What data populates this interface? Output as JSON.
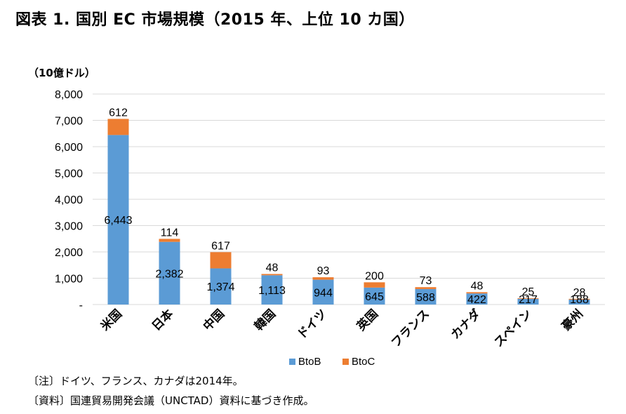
{
  "title": "図表 1.  国別 EC 市場規模（2015 年、上位 10 カ国）",
  "unit_label": "（10億ドル）",
  "notes": {
    "note1": "〔注〕ドイツ、フランス、カナダは2014年。",
    "note2": "〔資料〕国連貿易開発会議（UNCTAD）資料に基づき作成。"
  },
  "chart_data": {
    "type": "bar",
    "stacked": true,
    "categories": [
      "米国",
      "日本",
      "中国",
      "韓国",
      "ドイツ",
      "英国",
      "フランス",
      "カナダ",
      "スペイン",
      "豪州"
    ],
    "series": [
      {
        "name": "BtoB",
        "color": "#5b9bd5",
        "values": [
          6443,
          2382,
          1374,
          1113,
          944,
          645,
          588,
          422,
          217,
          188
        ]
      },
      {
        "name": "BtoC",
        "color": "#ed7d31",
        "values": [
          612,
          114,
          617,
          48,
          93,
          200,
          73,
          48,
          25,
          28
        ]
      }
    ],
    "y_ticks": [
      "8,000",
      "7,000",
      "6,000",
      "5,000",
      "4,000",
      "3,000",
      "2,000",
      "1,000",
      "-"
    ],
    "ylim": [
      0,
      8000
    ],
    "grid": true,
    "legend_position": "bottom"
  }
}
